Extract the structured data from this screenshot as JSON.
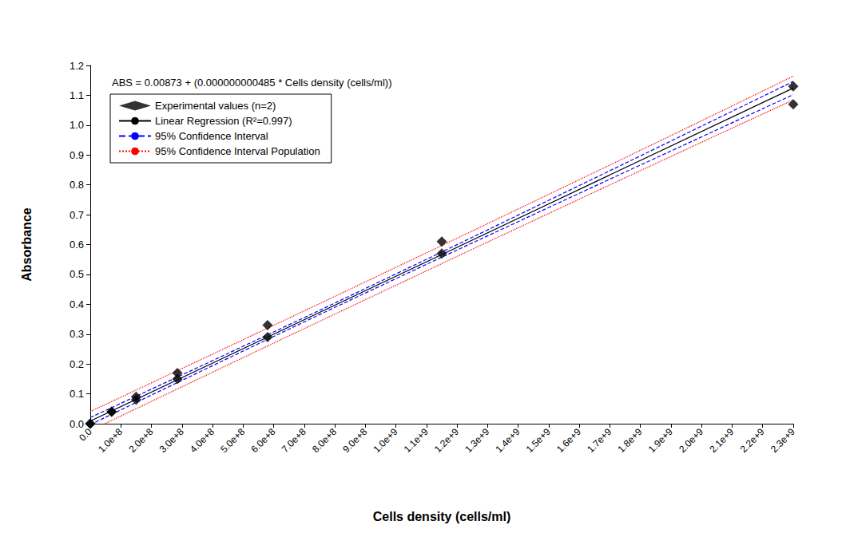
{
  "chart_data": {
    "type": "scatter",
    "title": "ABS = 0.00873 + (0.000000000485 * Cells density (cells/ml))",
    "x_label": "Cells density (cells/ml)",
    "y_label": "Absorbance",
    "xlim": [
      0,
      2300000000
    ],
    "xticks": [
      {
        "value": 0,
        "label": "0.0"
      },
      {
        "value": 100000000,
        "label": "1.0e+8"
      },
      {
        "value": 200000000,
        "label": "2.0e+8"
      },
      {
        "value": 300000000,
        "label": "3.0e+8"
      },
      {
        "value": 400000000,
        "label": "4.0e+8"
      },
      {
        "value": 500000000,
        "label": "5.0e+8"
      },
      {
        "value": 600000000,
        "label": "6.0e+8"
      },
      {
        "value": 700000000,
        "label": "7.0e+8"
      },
      {
        "value": 800000000,
        "label": "8.0e+8"
      },
      {
        "value": 900000000,
        "label": "9.0e+8"
      },
      {
        "value": 1000000000,
        "label": "1.0e+9"
      },
      {
        "value": 1100000000,
        "label": "1.1e+9"
      },
      {
        "value": 1200000000,
        "label": "1.2e+9"
      },
      {
        "value": 1300000000,
        "label": "1.3e+9"
      },
      {
        "value": 1400000000,
        "label": "1.4e+9"
      },
      {
        "value": 1500000000,
        "label": "1.5e+9"
      },
      {
        "value": 1600000000,
        "label": "1.6e+9"
      },
      {
        "value": 1700000000,
        "label": "1.7e+9"
      },
      {
        "value": 1800000000,
        "label": "1.8e+9"
      },
      {
        "value": 1900000000,
        "label": "1.9e+9"
      },
      {
        "value": 2000000000,
        "label": "2.0e+9"
      },
      {
        "value": 2100000000,
        "label": "2.1e+9"
      },
      {
        "value": 2200000000,
        "label": "2.2e+9"
      },
      {
        "value": 2300000000,
        "label": "2.3e+9"
      }
    ],
    "ylim": [
      0,
      1.2
    ],
    "yticks": [
      {
        "value": 0,
        "label": "0.0"
      },
      0.1,
      0.2,
      0.3,
      0.4,
      0.5,
      0.6,
      0.7,
      0.8,
      0.9,
      {
        "value": 1,
        "label": "1.0"
      },
      1.1,
      1.2
    ],
    "grid": false,
    "legend": "upper left",
    "series": [
      {
        "name": "Experimental values (n=2)",
        "type": "scatter",
        "marker": "diamond",
        "color": "#000000",
        "x": [
          0,
          0,
          70000000,
          70000000,
          150000000,
          150000000,
          285000000,
          285000000,
          580000000,
          580000000,
          1150000000,
          1150000000,
          2300000000,
          2300000000
        ],
        "values": [
          0,
          0,
          0.04,
          0.04,
          0.08,
          0.09,
          0.15,
          0.17,
          0.29,
          0.33,
          0.57,
          0.61,
          1.13,
          1.07
        ]
      },
      {
        "name": "Linear Regression (R²=0.997)",
        "type": "line",
        "line_style": "solid",
        "color": "#000000",
        "x": [
          0,
          2300000000
        ],
        "values": [
          0.00873,
          1.12423
        ]
      },
      {
        "name": "95% Confidence Interval",
        "type": "band",
        "line_style": "dashed",
        "color": "#0000ff",
        "x": [
          0,
          500000000,
          1000000000,
          1500000000,
          2000000000,
          2300000000
        ],
        "lower": [
          -0.0033,
          0.2432,
          0.4857,
          0.7242,
          0.9607,
          1.1022
        ],
        "upper": [
          0.0207,
          0.2592,
          0.5017,
          0.7482,
          0.9967,
          1.1462
        ]
      },
      {
        "name": "95% Confidence Interval Population",
        "type": "band",
        "line_style": "dotted",
        "color": "#ff0000",
        "x": [
          0,
          500000000,
          1000000000,
          1500000000,
          2000000000,
          2300000000
        ],
        "lower": [
          -0.0233,
          0.2212,
          0.4637,
          0.7042,
          0.9427,
          1.0842
        ],
        "upper": [
          0.0407,
          0.2812,
          0.5237,
          0.7682,
          1.0147,
          1.1642
        ]
      }
    ]
  }
}
